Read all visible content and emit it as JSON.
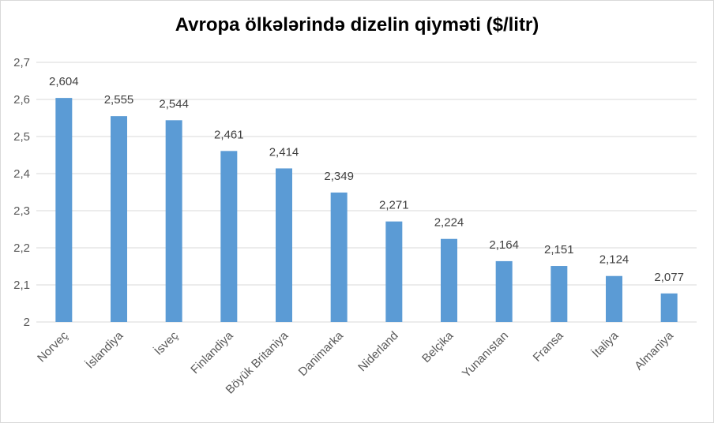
{
  "chart_data": {
    "type": "bar",
    "title": "Avropa ölkələrində dizelin qiyməti ($/litr)",
    "xlabel": "",
    "ylabel": "",
    "ylim": [
      2,
      2.7
    ],
    "yticks": [
      "2",
      "2,1",
      "2,2",
      "2,3",
      "2,4",
      "2,5",
      "2,6",
      "2,7"
    ],
    "ytick_values": [
      2,
      2.1,
      2.2,
      2.3,
      2.4,
      2.5,
      2.6,
      2.7
    ],
    "grid": true,
    "legend": "none",
    "bar_color": "#5b9bd5",
    "categories": [
      "Norveç",
      "İslandiya",
      "İsveç",
      "Finlandiya",
      "Böyük Britaniya",
      "Danimarka",
      "Niderland",
      "Belçika",
      "Yunanıstan",
      "Fransa",
      "İtaliya",
      "Almaniya"
    ],
    "values": [
      2.604,
      2.555,
      2.544,
      2.461,
      2.414,
      2.349,
      2.271,
      2.224,
      2.164,
      2.151,
      2.124,
      2.077
    ],
    "value_labels": [
      "2,604",
      "2,555",
      "2,544",
      "2,461",
      "2,414",
      "2,349",
      "2,271",
      "2,224",
      "2,164",
      "2,151",
      "2,124",
      "2,077"
    ]
  }
}
